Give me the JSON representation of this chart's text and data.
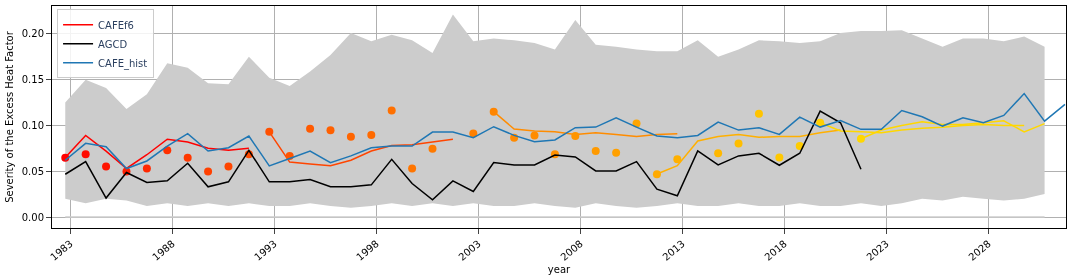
{
  "chart_data": {
    "type": "line",
    "xlabel": "year",
    "ylabel": "Severity of the Excess Heat Factor",
    "xlim": [
      1982.1,
      2031.8
    ],
    "ylim": [
      -0.012,
      0.2304
    ],
    "xticks": [
      1983,
      1988,
      1993,
      1998,
      2003,
      2008,
      2013,
      2018,
      2023,
      2028
    ],
    "yticks": [
      {
        "value": 0,
        "label": "0.00"
      },
      {
        "value": 0.05,
        "label": "0.05"
      },
      {
        "value": 0.1,
        "label": "0.10"
      },
      {
        "value": 0.15,
        "label": "0.15"
      },
      {
        "value": 0.2,
        "label": "0.20"
      }
    ],
    "grid": true,
    "legend": "top left",
    "series": [
      {
        "type": "area",
        "color": "#cccccc",
        "x": [
          1982.75,
          1983.75,
          1984.75,
          1985.75,
          1986.75,
          1987.75,
          1988.75,
          1989.75,
          1990.75,
          1991.75,
          1992.75,
          1993.75,
          1994.75,
          1995.75,
          1996.75,
          1997.75,
          1998.75,
          1999.75,
          2000.75,
          2001.75,
          2002.75,
          2003.75,
          2004.75,
          2005.75,
          2006.75,
          2007.75,
          2008.75,
          2009.75,
          2010.75,
          2011.75,
          2012.75,
          2013.75,
          2014.75,
          2015.75,
          2016.75,
          2017.75,
          2018.75,
          2019.75,
          2020.75,
          2021.75,
          2022.75,
          2023.75,
          2024.75,
          2025.75,
          2026.75,
          2027.75,
          2028.75,
          2029.75,
          2030.75
        ],
        "values": [
          null,
          null,
          null,
          null,
          null,
          null,
          null,
          null,
          null,
          null,
          null,
          null,
          null,
          null,
          null,
          null,
          null,
          null,
          null,
          null,
          null,
          null,
          null,
          null,
          null,
          null,
          null,
          null,
          null,
          null,
          null,
          null,
          null,
          null,
          null,
          null,
          null,
          null,
          null,
          null,
          null,
          null,
          null,
          null,
          null,
          null,
          null,
          null,
          null
        ],
        "upper": [
          0.125,
          0.15,
          0.141,
          0.118,
          0.134,
          0.168,
          0.163,
          0.146,
          0.145,
          0.175,
          0.152,
          0.143,
          0.159,
          0.177,
          0.201,
          0.192,
          0.199,
          0.193,
          0.179,
          0.221,
          0.192,
          0.195,
          0.193,
          0.19,
          0.183,
          0.215,
          0.188,
          0.186,
          0.183,
          0.181,
          0.181,
          0.193,
          0.175,
          0.183,
          0.193,
          0.192,
          0.19,
          0.192,
          0.201,
          0.203,
          0.203,
          0.204,
          0.195,
          0.186,
          0.195,
          0.195,
          0.192,
          0.197,
          0.186
        ],
        "lower": [
          0.02,
          0.015,
          0.02,
          0.018,
          0.012,
          0.015,
          0.012,
          0.015,
          0.012,
          0.015,
          0.012,
          0.012,
          0.015,
          0.012,
          0.01,
          0.012,
          0.015,
          0.012,
          0.015,
          0.012,
          0.015,
          0.012,
          0.012,
          0.015,
          0.012,
          0.01,
          0.015,
          0.012,
          0.01,
          0.012,
          0.015,
          0.012,
          0.012,
          0.015,
          0.012,
          0.012,
          0.015,
          0.012,
          0.012,
          0.015,
          0.012,
          0.015,
          0.02,
          0.018,
          0.022,
          0.02,
          0.018,
          0.02,
          0.025
        ]
      },
      {
        "color": "#cccccc",
        "x": [
          1982.75,
          2030.75
        ],
        "values": [
          0,
          0
        ]
      },
      {
        "name": "CAFEf6",
        "color": "#ff0000",
        "x": [
          1982.75,
          1983.75,
          1984.75,
          1985.75,
          1986.75,
          1987.75,
          1988.75,
          1989.75,
          1990.75,
          1991.75
        ],
        "values": [
          0.065,
          0.089,
          0.072,
          0.053,
          0.068,
          0.085,
          0.082,
          0.075,
          0.073,
          0.075
        ]
      },
      {
        "color": "#ff4500",
        "x": [
          1992.75,
          1993.75,
          1994.75,
          1995.75,
          1996.75,
          1997.75,
          1998.75,
          1999.75,
          2000.75,
          2001.75
        ],
        "values": [
          0.093,
          0.06,
          0.058,
          0.056,
          0.062,
          0.072,
          0.078,
          0.079,
          0.082,
          0.085
        ]
      },
      {
        "color": "#ff8c00",
        "x": [
          2003.75,
          2004.75,
          2005.75,
          2006.75,
          2007.75,
          2008.75,
          2009.75,
          2010.75,
          2011.75,
          2012.75
        ],
        "values": [
          0.115,
          0.096,
          0.094,
          0.093,
          0.09,
          0.092,
          0.09,
          0.088,
          0.09,
          0.091
        ]
      },
      {
        "color": "#ffb000",
        "x": [
          2011.75,
          2012.75,
          2013.75,
          2014.75,
          2015.75,
          2016.75,
          2017.75,
          2018.75,
          2019.75,
          2020.75
        ],
        "values": [
          0.047,
          0.056,
          0.083,
          0.088,
          0.09,
          0.087,
          0.088,
          0.088,
          0.092,
          0.095
        ]
      },
      {
        "color": "#ffd700",
        "x": [
          2019.75,
          2020.75,
          2021.75,
          2022.75,
          2023.75,
          2024.75,
          2025.75,
          2026.75,
          2027.75,
          2028.75,
          2029.75
        ],
        "values": [
          0.103,
          0.094,
          0.093,
          0.092,
          0.095,
          0.097,
          0.098,
          0.1,
          0.101,
          0.1,
          0.1
        ]
      },
      {
        "color": "#ffd700",
        "x": [
          2021.75,
          2022.75,
          2023.75,
          2024.75,
          2025.75,
          2026.75,
          2027.75,
          2028.75,
          2029.75,
          2030.75
        ],
        "values": [
          0.0855,
          0.095,
          0.1,
          0.104,
          0.101,
          0.101,
          0.103,
          0.105,
          0.093,
          0.102
        ]
      },
      {
        "type": "scatter",
        "marker": "circle",
        "x": [
          1982.75,
          1983.75,
          1984.75,
          1985.75,
          1986.75,
          1987.75,
          1988.75,
          1989.75,
          1990.75,
          1991.75,
          1992.75,
          1993.75,
          1994.75,
          1995.75,
          1996.75,
          1997.75,
          1998.75,
          1999.75,
          2000.75,
          2002.75,
          2003.75,
          2004.75,
          2005.75,
          2006.75,
          2007.75,
          2008.75,
          2009.75,
          2010.75,
          2011.75,
          2012.75,
          2014.75,
          2015.75,
          2016.75,
          2017.75,
          2018.75,
          2019.75,
          2021.75
        ],
        "values": [
          0.0648,
          0.0685,
          0.0551,
          0.0496,
          0.0529,
          0.0728,
          0.0648,
          0.0496,
          0.0551,
          0.0685,
          0.0931,
          0.0667,
          0.0964,
          0.0946,
          0.0877,
          0.0895,
          0.1163,
          0.0529,
          0.0746,
          0.0913,
          0.1149,
          0.0866,
          0.0891,
          0.0685,
          0.0884,
          0.0721,
          0.0703,
          0.1022,
          0.0467,
          0.063,
          0.0696,
          0.0804,
          0.1127,
          0.0649,
          0.0775,
          0.1029,
          0.0855
        ],
        "colors": [
          "#ff0000",
          "#ff0a00",
          "#ff1400",
          "#ff1e00",
          "#ff2800",
          "#ff3000",
          "#ff3800",
          "#ff4000",
          "#ff4500",
          "#ff4a00",
          "#ff5000",
          "#ff5500",
          "#ff5a00",
          "#ff6000",
          "#ff6500",
          "#ff6a00",
          "#ff7000",
          "#ff7500",
          "#ff7a00",
          "#ff8000",
          "#ff8500",
          "#ff8a00",
          "#ff8c00",
          "#ff9000",
          "#ff9500",
          "#ff9a00",
          "#ffa000",
          "#ffa500",
          "#ffaa00",
          "#ffb000",
          "#ffb800",
          "#ffbe00",
          "#ffc400",
          "#ffc800",
          "#ffcc00",
          "#ffd000",
          "#ffd700"
        ]
      },
      {
        "name": "AGCD",
        "color": "#000000",
        "x": [
          1982.75,
          1983.75,
          1984.75,
          1985.75,
          1986.75,
          1987.75,
          1988.75,
          1989.75,
          1990.75,
          1991.75,
          1992.75,
          1993.75,
          1994.75,
          1995.75,
          1996.75,
          1997.75,
          1998.75,
          1999.75,
          2000.75,
          2001.75,
          2002.75,
          2003.75,
          2004.75,
          2005.75,
          2006.75,
          2007.75,
          2008.75,
          2009.75,
          2010.75,
          2011.75,
          2012.75,
          2013.75,
          2014.75,
          2015.75,
          2016.75,
          2017.75,
          2018.75,
          2019.75,
          2020.75,
          2021.75
        ],
        "values": [
          0.0467,
          0.0605,
          0.0207,
          0.0486,
          0.0377,
          0.0395,
          0.0587,
          0.033,
          0.0384,
          0.0728,
          0.0384,
          0.0384,
          0.041,
          0.033,
          0.033,
          0.0351,
          0.063,
          0.0366,
          0.0188,
          0.0395,
          0.0279,
          0.0594,
          0.0569,
          0.0569,
          0.0677,
          0.0656,
          0.0503,
          0.0503,
          0.0605,
          0.0304,
          0.0232,
          0.0721,
          0.0569,
          0.0667,
          0.0696,
          0.0565,
          0.0696,
          0.1156,
          0.1029,
          0.0522
        ]
      },
      {
        "name": "CAFE_hist",
        "color": "#1f77b4",
        "x": [
          1982.75,
          1983.75,
          1984.75,
          1985.75,
          1986.75,
          1987.75,
          1988.75,
          1989.75,
          1990.75,
          1991.75,
          1992.75,
          1993.75,
          1994.75,
          1995.75,
          1996.75,
          1997.75,
          1998.75,
          1999.75,
          2000.75,
          2001.75,
          2002.75,
          2003.75,
          2004.75,
          2005.75,
          2006.75,
          2007.75,
          2008.75,
          2009.75,
          2010.75,
          2011.75,
          2012.75,
          2013.75,
          2014.75,
          2015.75,
          2016.75,
          2017.75,
          2018.75,
          2019.75,
          2020.75,
          2021.75,
          2022.75,
          2023.75,
          2024.75,
          2025.75,
          2026.75,
          2027.75,
          2028.75,
          2029.75,
          2030.75,
          2031.75
        ],
        "values": [
          0.062,
          0.0804,
          0.0768,
          0.0529,
          0.0612,
          0.0775,
          0.091,
          0.0721,
          0.0757,
          0.0884,
          0.0558,
          0.0638,
          0.0721,
          0.0594,
          0.0667,
          0.0757,
          0.0775,
          0.0775,
          0.0928,
          0.0928,
          0.0866,
          0.0986,
          0.0891,
          0.0822,
          0.0841,
          0.0975,
          0.0982,
          0.1083,
          0.0982,
          0.0884,
          0.0866,
          0.0891,
          0.1036,
          0.0949,
          0.0975,
          0.0902,
          0.109,
          0.0982,
          0.1054,
          0.0957,
          0.0957,
          0.1163,
          0.1094,
          0.0993,
          0.1083,
          0.1029,
          0.1109,
          0.1348,
          0.1047,
          0.123
        ]
      }
    ]
  }
}
